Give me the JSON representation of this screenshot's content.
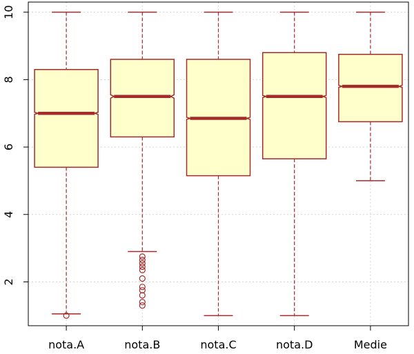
{
  "chart_data": {
    "type": "boxplot",
    "notched": true,
    "categories": [
      "nota.A",
      "nota.B",
      "nota.C",
      "nota.D",
      "Medie"
    ],
    "ylim": [
      0.7,
      10.3
    ],
    "yticks": [
      2,
      4,
      6,
      8,
      10
    ],
    "grid": true,
    "colors": {
      "box_fill": "#ffffcc",
      "box_stroke": "#a52a2a",
      "grid": "#d3d3d3"
    },
    "boxes": [
      {
        "name": "nota.A",
        "whisker_low": 1.05,
        "q1": 5.4,
        "median": 7.0,
        "q3": 8.3,
        "whisker_high": 10.0,
        "notch_low": 6.97,
        "notch_high": 7.03,
        "outliers": [
          1.0
        ]
      },
      {
        "name": "nota.B",
        "whisker_low": 2.9,
        "q1": 6.3,
        "median": 7.5,
        "q3": 8.6,
        "whisker_high": 10.0,
        "notch_low": 7.45,
        "notch_high": 7.55,
        "outliers": [
          2.75,
          2.65,
          2.55,
          2.45,
          2.35,
          2.1,
          1.85,
          1.75,
          1.6,
          1.4,
          1.3
        ]
      },
      {
        "name": "nota.C",
        "whisker_low": 1.0,
        "q1": 5.15,
        "median": 6.85,
        "q3": 8.6,
        "whisker_high": 10.0,
        "notch_low": 6.82,
        "notch_high": 6.88,
        "outliers": []
      },
      {
        "name": "nota.D",
        "whisker_low": 1.0,
        "q1": 5.65,
        "median": 7.5,
        "q3": 8.8,
        "whisker_high": 10.0,
        "notch_low": 7.47,
        "notch_high": 7.53,
        "outliers": []
      },
      {
        "name": "Medie",
        "whisker_low": 5.0,
        "q1": 6.75,
        "median": 7.8,
        "q3": 8.75,
        "whisker_high": 10.0,
        "notch_low": 7.77,
        "notch_high": 7.83,
        "outliers": []
      }
    ]
  }
}
